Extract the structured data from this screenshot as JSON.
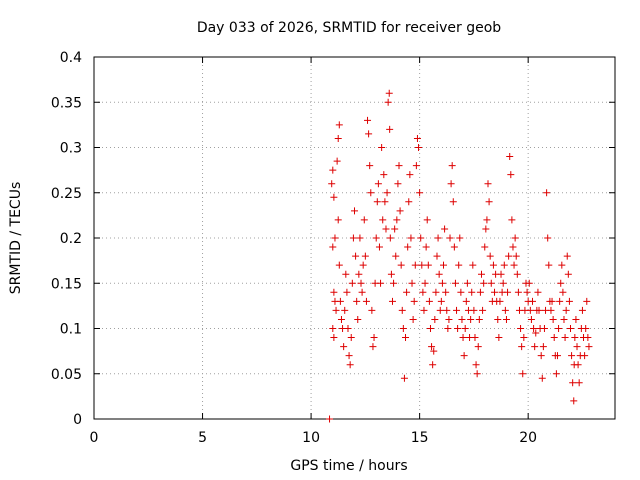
{
  "chart_data": {
    "type": "scatter",
    "title": "Day 033 of 2026, SRMTID for receiver geob",
    "xlabel": "GPS time / hours",
    "ylabel": "SRMTID / TECUs",
    "xlim": [
      0,
      24
    ],
    "ylim": [
      0,
      0.4
    ],
    "x_ticks": [
      0,
      5,
      10,
      15,
      20
    ],
    "x_tick_labels": [
      "0",
      "5",
      "10",
      "15",
      "20"
    ],
    "y_ticks": [
      0,
      0.05,
      0.1,
      0.15,
      0.2,
      0.25,
      0.3,
      0.35,
      0.4
    ],
    "y_tick_labels": [
      "0",
      "0.05",
      "0.1",
      "0.15",
      "0.2",
      "0.25",
      "0.3",
      "0.35",
      "0.4"
    ],
    "grid": true,
    "marker": "+",
    "series": [
      {
        "name": "SRMTID",
        "color": "#dd0000",
        "points": [
          [
            10.85,
            0.0
          ],
          [
            10.95,
            0.26
          ],
          [
            11.0,
            0.275
          ],
          [
            11.05,
            0.245
          ],
          [
            11.0,
            0.19
          ],
          [
            11.1,
            0.2
          ],
          [
            11.05,
            0.14
          ],
          [
            11.1,
            0.13
          ],
          [
            11.0,
            0.1
          ],
          [
            11.05,
            0.09
          ],
          [
            11.15,
            0.12
          ],
          [
            11.2,
            0.285
          ],
          [
            11.25,
            0.31
          ],
          [
            11.3,
            0.325
          ],
          [
            11.25,
            0.22
          ],
          [
            11.3,
            0.17
          ],
          [
            11.35,
            0.13
          ],
          [
            11.4,
            0.11
          ],
          [
            11.45,
            0.1
          ],
          [
            11.5,
            0.08
          ],
          [
            11.55,
            0.12
          ],
          [
            11.6,
            0.16
          ],
          [
            11.65,
            0.14
          ],
          [
            11.7,
            0.1
          ],
          [
            11.75,
            0.07
          ],
          [
            11.8,
            0.06
          ],
          [
            11.85,
            0.09
          ],
          [
            11.9,
            0.15
          ],
          [
            11.95,
            0.2
          ],
          [
            12.0,
            0.23
          ],
          [
            12.05,
            0.18
          ],
          [
            12.1,
            0.13
          ],
          [
            12.15,
            0.11
          ],
          [
            12.2,
            0.16
          ],
          [
            12.25,
            0.2
          ],
          [
            12.3,
            0.15
          ],
          [
            12.35,
            0.14
          ],
          [
            12.4,
            0.17
          ],
          [
            12.45,
            0.22
          ],
          [
            12.5,
            0.18
          ],
          [
            12.55,
            0.13
          ],
          [
            12.6,
            0.33
          ],
          [
            12.65,
            0.315
          ],
          [
            12.7,
            0.28
          ],
          [
            12.75,
            0.25
          ],
          [
            12.8,
            0.12
          ],
          [
            12.85,
            0.08
          ],
          [
            12.9,
            0.09
          ],
          [
            12.95,
            0.15
          ],
          [
            13.0,
            0.2
          ],
          [
            13.05,
            0.24
          ],
          [
            13.1,
            0.26
          ],
          [
            13.15,
            0.19
          ],
          [
            13.2,
            0.15
          ],
          [
            13.25,
            0.3
          ],
          [
            13.3,
            0.22
          ],
          [
            13.35,
            0.27
          ],
          [
            13.4,
            0.24
          ],
          [
            13.45,
            0.21
          ],
          [
            13.5,
            0.25
          ],
          [
            13.55,
            0.35
          ],
          [
            13.6,
            0.36
          ],
          [
            13.62,
            0.32
          ],
          [
            13.65,
            0.2
          ],
          [
            13.7,
            0.16
          ],
          [
            13.75,
            0.13
          ],
          [
            13.8,
            0.15
          ],
          [
            13.85,
            0.21
          ],
          [
            13.9,
            0.18
          ],
          [
            13.95,
            0.22
          ],
          [
            14.0,
            0.26
          ],
          [
            14.05,
            0.28
          ],
          [
            14.1,
            0.23
          ],
          [
            14.15,
            0.17
          ],
          [
            14.2,
            0.12
          ],
          [
            14.25,
            0.1
          ],
          [
            14.3,
            0.045
          ],
          [
            14.35,
            0.09
          ],
          [
            14.4,
            0.14
          ],
          [
            14.45,
            0.19
          ],
          [
            14.5,
            0.24
          ],
          [
            14.55,
            0.27
          ],
          [
            14.6,
            0.2
          ],
          [
            14.65,
            0.15
          ],
          [
            14.7,
            0.11
          ],
          [
            14.75,
            0.13
          ],
          [
            14.8,
            0.17
          ],
          [
            14.85,
            0.28
          ],
          [
            14.9,
            0.31
          ],
          [
            14.95,
            0.3
          ],
          [
            15.0,
            0.25
          ],
          [
            15.05,
            0.2
          ],
          [
            15.1,
            0.17
          ],
          [
            15.15,
            0.14
          ],
          [
            15.2,
            0.12
          ],
          [
            15.25,
            0.15
          ],
          [
            15.3,
            0.19
          ],
          [
            15.35,
            0.22
          ],
          [
            15.4,
            0.17
          ],
          [
            15.45,
            0.13
          ],
          [
            15.5,
            0.1
          ],
          [
            15.55,
            0.08
          ],
          [
            15.6,
            0.06
          ],
          [
            15.65,
            0.075
          ],
          [
            15.7,
            0.11
          ],
          [
            15.75,
            0.14
          ],
          [
            15.8,
            0.18
          ],
          [
            15.85,
            0.2
          ],
          [
            15.9,
            0.16
          ],
          [
            15.95,
            0.12
          ],
          [
            16.0,
            0.13
          ],
          [
            16.05,
            0.15
          ],
          [
            16.1,
            0.17
          ],
          [
            16.15,
            0.21
          ],
          [
            16.2,
            0.14
          ],
          [
            16.25,
            0.12
          ],
          [
            16.3,
            0.1
          ],
          [
            16.35,
            0.11
          ],
          [
            16.4,
            0.2
          ],
          [
            16.45,
            0.26
          ],
          [
            16.5,
            0.28
          ],
          [
            16.55,
            0.24
          ],
          [
            16.6,
            0.19
          ],
          [
            16.65,
            0.15
          ],
          [
            16.7,
            0.12
          ],
          [
            16.75,
            0.1
          ],
          [
            16.8,
            0.17
          ],
          [
            16.85,
            0.2
          ],
          [
            16.9,
            0.14
          ],
          [
            16.95,
            0.11
          ],
          [
            17.0,
            0.09
          ],
          [
            17.05,
            0.07
          ],
          [
            17.1,
            0.1
          ],
          [
            17.15,
            0.13
          ],
          [
            17.2,
            0.15
          ],
          [
            17.25,
            0.12
          ],
          [
            17.3,
            0.09
          ],
          [
            17.35,
            0.11
          ],
          [
            17.4,
            0.14
          ],
          [
            17.45,
            0.17
          ],
          [
            17.5,
            0.12
          ],
          [
            17.55,
            0.09
          ],
          [
            17.6,
            0.06
          ],
          [
            17.65,
            0.05
          ],
          [
            17.7,
            0.08
          ],
          [
            17.75,
            0.11
          ],
          [
            17.8,
            0.14
          ],
          [
            17.85,
            0.16
          ],
          [
            17.9,
            0.12
          ],
          [
            17.95,
            0.15
          ],
          [
            18.0,
            0.19
          ],
          [
            18.05,
            0.21
          ],
          [
            18.1,
            0.22
          ],
          [
            18.15,
            0.26
          ],
          [
            18.2,
            0.24
          ],
          [
            18.25,
            0.18
          ],
          [
            18.3,
            0.15
          ],
          [
            18.35,
            0.13
          ],
          [
            18.4,
            0.17
          ],
          [
            18.45,
            0.14
          ],
          [
            18.5,
            0.16
          ],
          [
            18.55,
            0.13
          ],
          [
            18.6,
            0.11
          ],
          [
            18.65,
            0.09
          ],
          [
            18.7,
            0.13
          ],
          [
            18.75,
            0.16
          ],
          [
            18.8,
            0.14
          ],
          [
            18.85,
            0.15
          ],
          [
            18.9,
            0.17
          ],
          [
            18.95,
            0.12
          ],
          [
            19.0,
            0.11
          ],
          [
            19.05,
            0.14
          ],
          [
            19.1,
            0.18
          ],
          [
            19.15,
            0.29
          ],
          [
            19.2,
            0.27
          ],
          [
            19.25,
            0.22
          ],
          [
            19.3,
            0.19
          ],
          [
            19.35,
            0.17
          ],
          [
            19.4,
            0.2
          ],
          [
            19.45,
            0.18
          ],
          [
            19.5,
            0.16
          ],
          [
            19.55,
            0.14
          ],
          [
            19.6,
            0.12
          ],
          [
            19.65,
            0.1
          ],
          [
            19.7,
            0.08
          ],
          [
            19.75,
            0.05
          ],
          [
            19.8,
            0.09
          ],
          [
            19.85,
            0.12
          ],
          [
            19.9,
            0.15
          ],
          [
            19.95,
            0.14
          ],
          [
            20.0,
            0.13
          ],
          [
            20.05,
            0.15
          ],
          [
            20.1,
            0.12
          ],
          [
            20.15,
            0.11
          ],
          [
            20.2,
            0.13
          ],
          [
            20.25,
            0.1
          ],
          [
            20.3,
            0.08
          ],
          [
            20.35,
            0.095
          ],
          [
            20.4,
            0.12
          ],
          [
            20.45,
            0.14
          ],
          [
            20.5,
            0.12
          ],
          [
            20.55,
            0.1
          ],
          [
            20.6,
            0.07
          ],
          [
            20.65,
            0.045
          ],
          [
            20.7,
            0.08
          ],
          [
            20.75,
            0.1
          ],
          [
            20.8,
            0.12
          ],
          [
            20.85,
            0.25
          ],
          [
            20.9,
            0.2
          ],
          [
            20.95,
            0.17
          ],
          [
            21.0,
            0.13
          ],
          [
            21.05,
            0.12
          ],
          [
            21.1,
            0.13
          ],
          [
            21.15,
            0.11
          ],
          [
            21.2,
            0.09
          ],
          [
            21.25,
            0.07
          ],
          [
            21.3,
            0.05
          ],
          [
            21.35,
            0.07
          ],
          [
            21.4,
            0.1
          ],
          [
            21.45,
            0.13
          ],
          [
            21.5,
            0.15
          ],
          [
            21.55,
            0.17
          ],
          [
            21.6,
            0.14
          ],
          [
            21.65,
            0.11
          ],
          [
            21.7,
            0.09
          ],
          [
            21.75,
            0.12
          ],
          [
            21.8,
            0.18
          ],
          [
            21.85,
            0.16
          ],
          [
            21.9,
            0.13
          ],
          [
            21.95,
            0.1
          ],
          [
            22.0,
            0.07
          ],
          [
            22.05,
            0.04
          ],
          [
            22.1,
            0.02
          ],
          [
            22.12,
            0.06
          ],
          [
            22.15,
            0.09
          ],
          [
            22.2,
            0.11
          ],
          [
            22.25,
            0.08
          ],
          [
            22.3,
            0.06
          ],
          [
            22.35,
            0.04
          ],
          [
            22.4,
            0.07
          ],
          [
            22.45,
            0.1
          ],
          [
            22.5,
            0.12
          ],
          [
            22.55,
            0.09
          ],
          [
            22.6,
            0.07
          ],
          [
            22.65,
            0.1
          ],
          [
            22.7,
            0.13
          ],
          [
            22.75,
            0.09
          ],
          [
            22.8,
            0.08
          ]
        ]
      }
    ]
  }
}
